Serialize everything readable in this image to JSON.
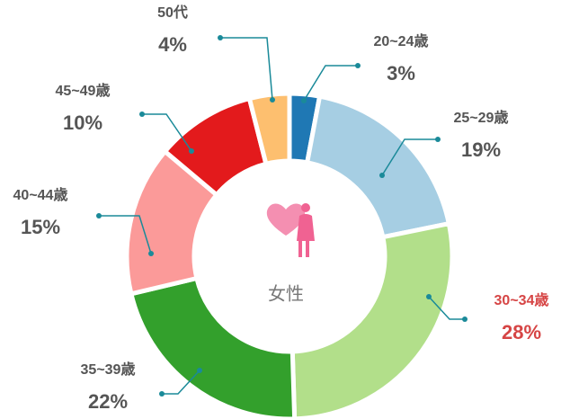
{
  "chart_data": {
    "type": "pie",
    "center_text": "女性",
    "categories": [
      "20~24歳",
      "25~29歳",
      "30~34歳",
      "35~39歳",
      "40~44歳",
      "45~49歳",
      "50代"
    ],
    "values": [
      3,
      19,
      28,
      22,
      15,
      10,
      4
    ],
    "value_labels": [
      "3%",
      "19%",
      "28%",
      "22%",
      "15%",
      "10%",
      "4%"
    ],
    "colors": [
      "#1f78b4",
      "#a6cee3",
      "#b2df8a",
      "#33a02c",
      "#fb9a99",
      "#e31a1c",
      "#fdbf6f"
    ],
    "label_colors": [
      "#555555",
      "#555555",
      "#d64545",
      "#555555",
      "#555555",
      "#555555",
      "#555555"
    ]
  }
}
